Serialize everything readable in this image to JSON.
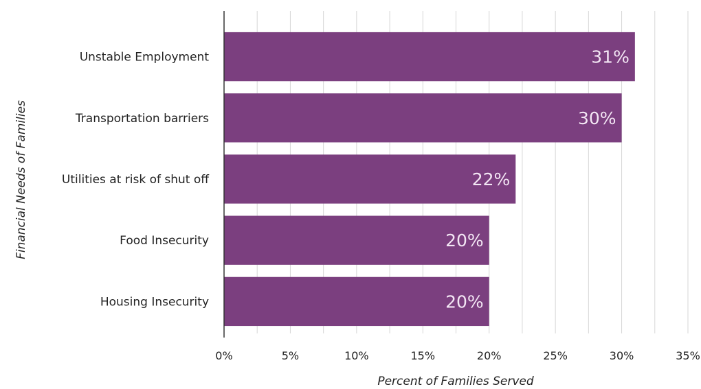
{
  "chart_data": {
    "type": "bar",
    "orientation": "horizontal",
    "title": "",
    "xlabel": "Percent of Families Served",
    "ylabel": "Financial Needs of Families",
    "categories": [
      "Unstable Employment",
      "Transportation barriers",
      "Utilities at risk of shut off",
      "Food Insecurity",
      "Housing Insecurity"
    ],
    "values": [
      31,
      30,
      22,
      20,
      20
    ],
    "data_labels": [
      "31%",
      "30%",
      "22%",
      "20%",
      "20%"
    ],
    "xlim": [
      0,
      35
    ],
    "x_ticks": [
      0,
      5,
      10,
      15,
      20,
      25,
      30,
      35
    ],
    "x_tick_labels": [
      "0%",
      "5%",
      "10%",
      "15%",
      "20%",
      "25%",
      "30%",
      "35%"
    ],
    "grid": "vertical",
    "minor_grid_step": 2.5,
    "legend": "none",
    "colors": {
      "bar": "#7b3f7f",
      "bar_label": "#f3e6f4",
      "grid": "#d6d6d6",
      "axis": "#333333",
      "text": "#222222"
    }
  }
}
